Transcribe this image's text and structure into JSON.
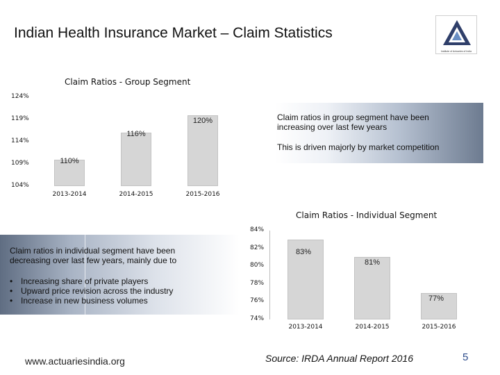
{
  "slide": {
    "title": "Indian Health Insurance Market – Claim Statistics",
    "logo_caption": "Institute of Actuaries of India",
    "page_number": "5"
  },
  "callouts": {
    "group": {
      "line1": "Claim ratios in group segment have been increasing over last few years",
      "line2": "This is driven majorly by market competition"
    },
    "individual": {
      "intro": "Claim ratios in individual segment have been decreasing over last few years, mainly due to",
      "bullets": [
        "Increasing share of private players",
        "Upward price revision across the industry",
        "Increase in new business volumes"
      ]
    }
  },
  "footer": {
    "url": "www.actuariesindia.org",
    "source": "Source: IRDA Annual Report 2016"
  },
  "chart_data": [
    {
      "type": "bar",
      "title": "Claim Ratios - Group Segment",
      "categories": [
        "2013-2014",
        "2014-2015",
        "2015-2016"
      ],
      "values": [
        110,
        116,
        120
      ],
      "data_labels": [
        "110%",
        "116%",
        "120%"
      ],
      "ylim": [
        104,
        124
      ],
      "yticks": [
        "124%",
        "119%",
        "114%",
        "109%",
        "104%"
      ],
      "xlabel": "",
      "ylabel": "",
      "bar_color": "#d6d6d6"
    },
    {
      "type": "bar",
      "title": "Claim Ratios - Individual Segment",
      "categories": [
        "2013-2014",
        "2014-2015",
        "2015-2016"
      ],
      "values": [
        83,
        81,
        77
      ],
      "data_labels": [
        "83%",
        "81%",
        "77%"
      ],
      "ylim": [
        74,
        84
      ],
      "yticks": [
        "84%",
        "82%",
        "80%",
        "78%",
        "76%",
        "74%"
      ],
      "xlabel": "",
      "ylabel": "",
      "bar_color": "#d6d6d6"
    }
  ]
}
